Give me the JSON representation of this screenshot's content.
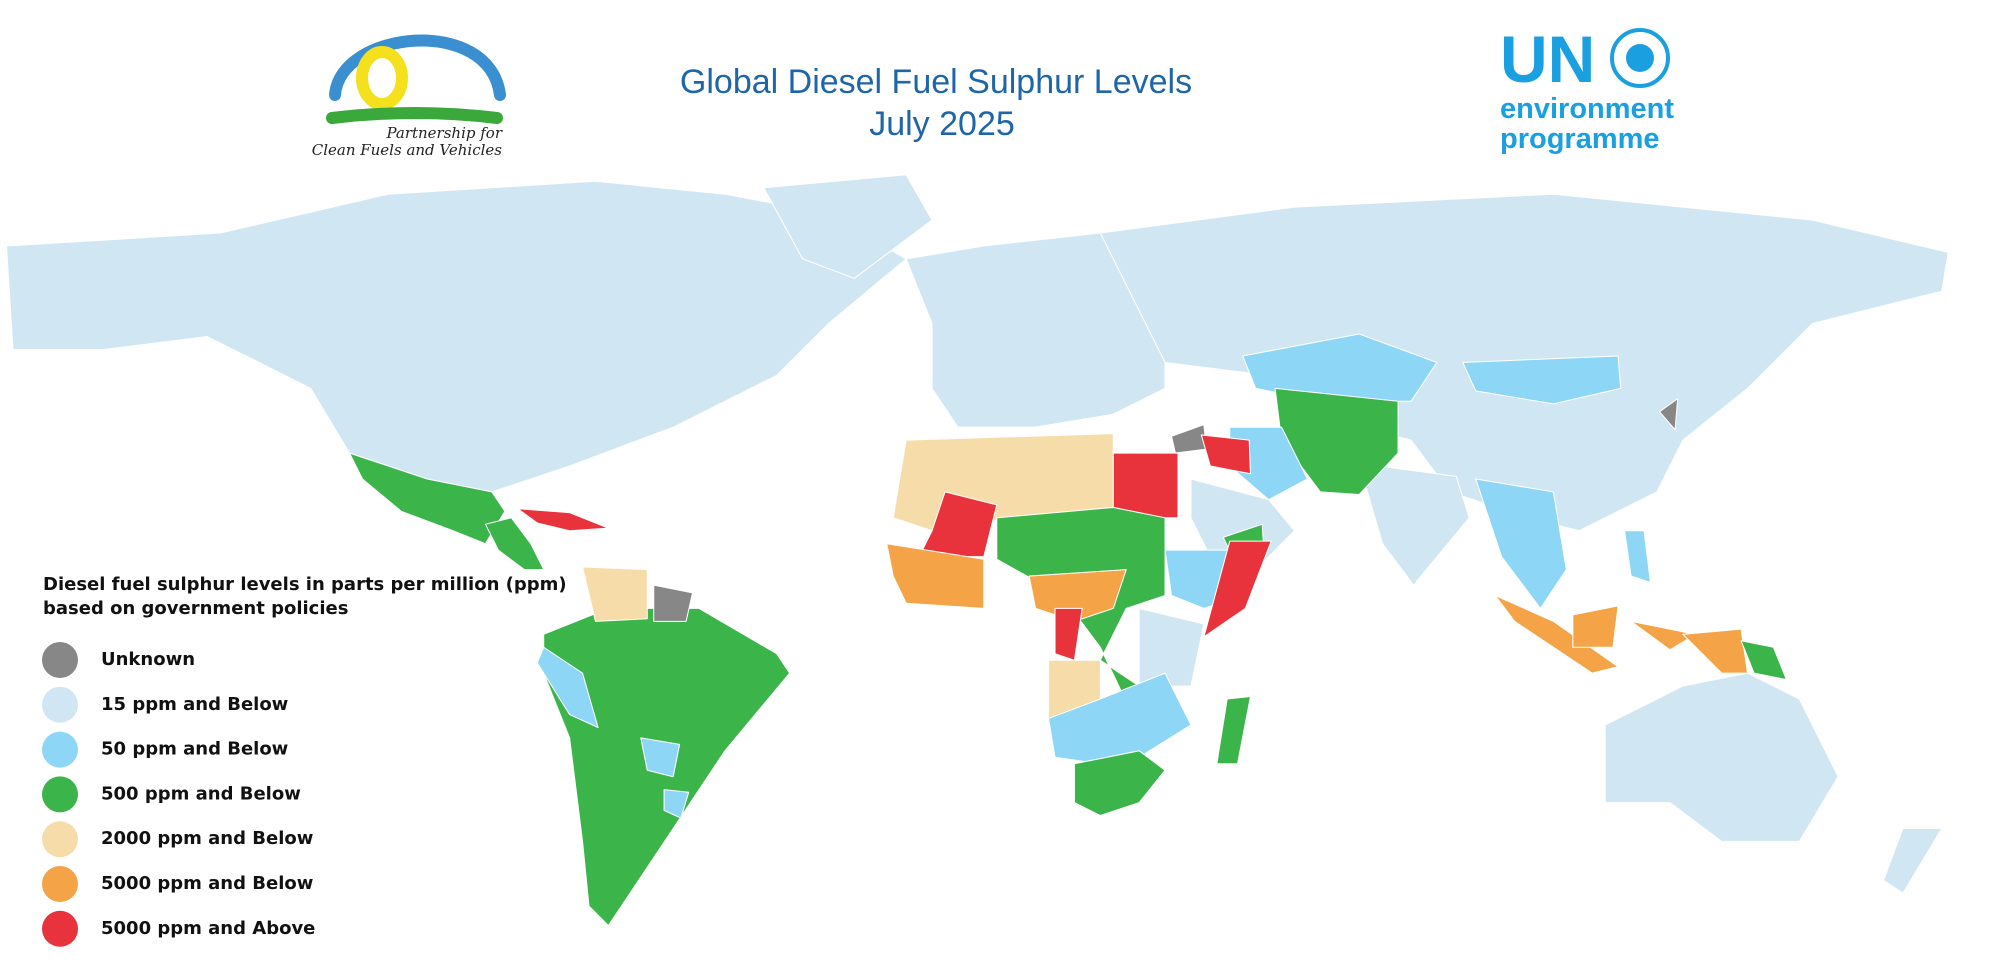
{
  "header": {
    "title": "Global Diesel Fuel Sulphur Levels",
    "subtitle": "July 2025"
  },
  "logos": {
    "pcfv": [
      "Partnership for",
      "Clean Fuels and Vehicles"
    ],
    "unep": {
      "name": "UN",
      "line1": "environment",
      "line2": "programme"
    }
  },
  "legend": {
    "title": [
      "Diesel fuel sulphur levels in parts per million (ppm)",
      "based on government policies"
    ],
    "items": [
      {
        "label": "Unknown",
        "color": "#878787"
      },
      {
        "label": "15 ppm and Below",
        "color": "#d0e7f3"
      },
      {
        "label": "50 ppm and Below",
        "color": "#8ed6f6"
      },
      {
        "label": "500 ppm and Below",
        "color": "#3bb54a"
      },
      {
        "label": "2000 ppm and Below",
        "color": "#f6dca8"
      },
      {
        "label": "5000 ppm and Below",
        "color": "#f4a346"
      },
      {
        "label": "5000 ppm and Above",
        "color": "#e8323c"
      }
    ]
  }
}
